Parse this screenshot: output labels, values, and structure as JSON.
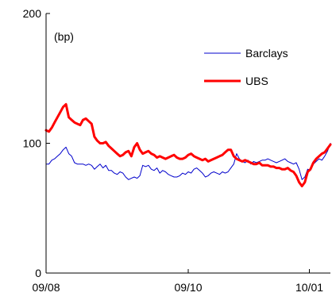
{
  "chart_data": {
    "type": "line",
    "ylabel": "(bp)",
    "ylim": [
      0,
      200
    ],
    "y_ticks": [
      0,
      100,
      200
    ],
    "x_ticks": [
      "09/08",
      "09/10",
      "10/01"
    ],
    "xlim": [
      0,
      100
    ],
    "x_tick_positions": [
      0,
      50,
      92.6
    ],
    "grid": false,
    "legend_position": "top-right",
    "series": [
      {
        "name": "Barclays",
        "color": "#0000cc",
        "x": [
          0,
          1,
          2,
          3,
          4,
          5,
          6,
          7,
          8,
          9,
          10,
          11,
          12,
          13,
          14,
          15,
          16,
          17,
          18,
          19,
          20,
          21,
          22,
          23,
          24,
          25,
          26,
          27,
          28,
          29,
          30,
          31,
          32,
          33,
          34,
          35,
          36,
          37,
          38,
          39,
          40,
          41,
          42,
          43,
          44,
          45,
          46,
          47,
          48,
          49,
          50,
          51,
          52,
          53,
          54,
          55,
          56,
          57,
          58,
          59,
          60,
          61,
          62,
          63,
          64,
          65,
          66,
          67,
          68,
          69,
          70,
          71,
          72,
          73,
          74,
          75,
          76,
          77,
          78,
          79,
          80,
          81,
          82,
          83,
          84,
          85,
          86,
          87,
          88,
          89,
          90,
          91,
          92,
          93,
          94,
          95,
          96,
          97,
          98,
          99,
          100
        ],
        "values": [
          84,
          84,
          87,
          88,
          90,
          92,
          95,
          97,
          92,
          90,
          85,
          84,
          84,
          84,
          83,
          84,
          83,
          80,
          82,
          84,
          81,
          83,
          79,
          79,
          77,
          76,
          78,
          77,
          74,
          72,
          73,
          74,
          73,
          75,
          83,
          82,
          83,
          80,
          79,
          81,
          77,
          79,
          78,
          76,
          75,
          74,
          74,
          75,
          77,
          76,
          78,
          77,
          80,
          81,
          79,
          77,
          74,
          75,
          77,
          78,
          77,
          76,
          78,
          77,
          78,
          81,
          84,
          92,
          88,
          86,
          85,
          87,
          84,
          86,
          85,
          86,
          87,
          87,
          88,
          87,
          86,
          85,
          86,
          87,
          88,
          86,
          85,
          84,
          85,
          80,
          72,
          74,
          80,
          79,
          84,
          86,
          88,
          87,
          90,
          94,
          100
        ]
      },
      {
        "name": "UBS",
        "color": "#ff0000",
        "x": [
          0,
          1,
          2,
          3,
          4,
          5,
          6,
          7,
          8,
          9,
          10,
          11,
          12,
          13,
          14,
          15,
          16,
          17,
          18,
          19,
          20,
          21,
          22,
          23,
          24,
          25,
          26,
          27,
          28,
          29,
          30,
          31,
          32,
          33,
          34,
          35,
          36,
          37,
          38,
          39,
          40,
          41,
          42,
          43,
          44,
          45,
          46,
          47,
          48,
          49,
          50,
          51,
          52,
          53,
          54,
          55,
          56,
          57,
          58,
          59,
          60,
          61,
          62,
          63,
          64,
          65,
          66,
          67,
          68,
          69,
          70,
          71,
          72,
          73,
          74,
          75,
          76,
          77,
          78,
          79,
          80,
          81,
          82,
          83,
          84,
          85,
          86,
          87,
          88,
          89,
          90,
          91,
          92,
          93,
          94,
          95,
          96,
          97,
          98,
          99,
          100
        ],
        "values": [
          110,
          109,
          112,
          116,
          120,
          124,
          128,
          130,
          120,
          118,
          116,
          115,
          114,
          118,
          119,
          117,
          115,
          105,
          102,
          100,
          100,
          101,
          98,
          96,
          94,
          92,
          90,
          91,
          93,
          94,
          90,
          97,
          100,
          95,
          92,
          93,
          94,
          92,
          91,
          89,
          90,
          89,
          88,
          89,
          90,
          91,
          89,
          88,
          88,
          89,
          91,
          92,
          90,
          89,
          88,
          87,
          88,
          86,
          87,
          88,
          89,
          90,
          91,
          93,
          95,
          95,
          90,
          88,
          87,
          86,
          87,
          86,
          85,
          84,
          84,
          85,
          83,
          83,
          83,
          82,
          82,
          81,
          81,
          80,
          80,
          81,
          79,
          78,
          75,
          70,
          67,
          70,
          78,
          80,
          85,
          88,
          90,
          92,
          93,
          96,
          99
        ]
      }
    ]
  }
}
